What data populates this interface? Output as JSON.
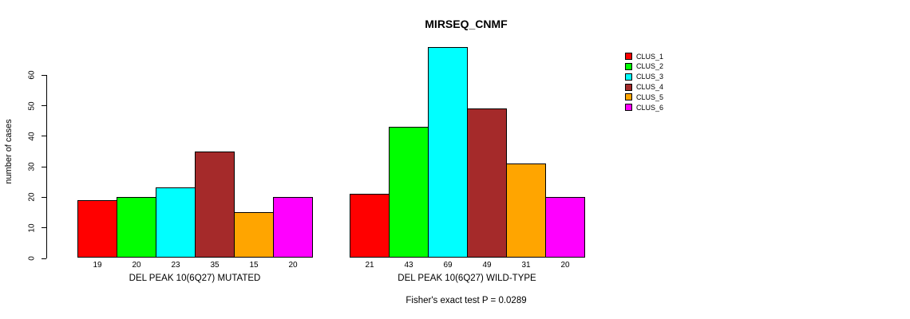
{
  "title": "MIRSEQ_CNMF",
  "ylabel": "number of cases",
  "caption": "Fisher's exact test P = 0.0289",
  "legend": {
    "items": [
      {
        "label": "CLUS_1",
        "color": "#FF0000"
      },
      {
        "label": "CLUS_2",
        "color": "#00FF00"
      },
      {
        "label": "CLUS_3",
        "color": "#00FFFF"
      },
      {
        "label": "CLUS_4",
        "color": "#A52A2A"
      },
      {
        "label": "CLUS_5",
        "color": "#FFA500"
      },
      {
        "label": "CLUS_6",
        "color": "#FF00FF"
      }
    ]
  },
  "chart_data": {
    "type": "bar",
    "title": "MIRSEQ_CNMF",
    "ylabel": "number of cases",
    "xlabel": "",
    "yticks": [
      0,
      10,
      20,
      30,
      40,
      50,
      60
    ],
    "ylim": [
      0,
      69
    ],
    "grid": false,
    "legend_position": "right",
    "series_labels": [
      "CLUS_1",
      "CLUS_2",
      "CLUS_3",
      "CLUS_4",
      "CLUS_5",
      "CLUS_6"
    ],
    "colors": [
      "#FF0000",
      "#00FF00",
      "#00FFFF",
      "#A52A2A",
      "#FFA500",
      "#FF00FF"
    ],
    "groups": [
      {
        "label": "DEL PEAK 10(6Q27) MUTATED",
        "values": [
          19,
          20,
          23,
          35,
          15,
          20
        ]
      },
      {
        "label": "DEL PEAK 10(6Q27) WILD-TYPE",
        "values": [
          21,
          43,
          69,
          49,
          31,
          20
        ]
      }
    ],
    "annotation": "Fisher's exact test P = 0.0289"
  }
}
